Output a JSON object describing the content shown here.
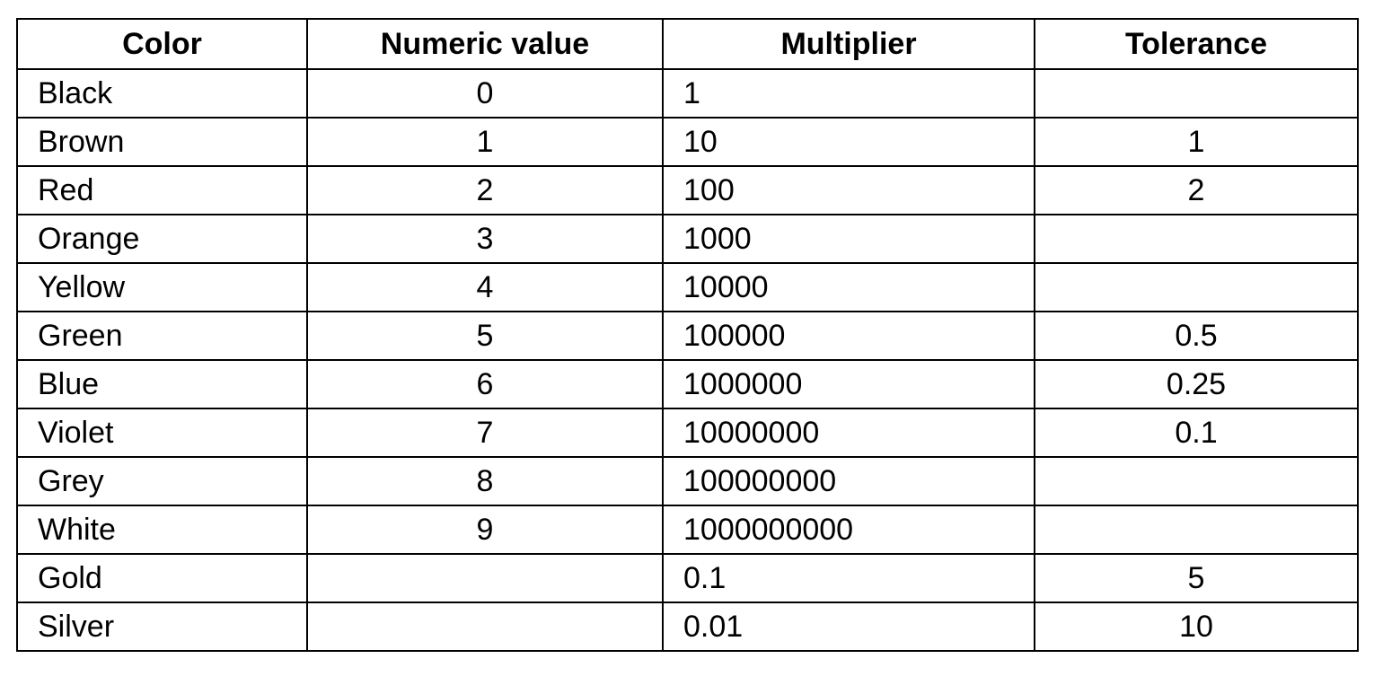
{
  "table": {
    "headers": [
      "Color",
      "Numeric value",
      "Multiplier",
      "Tolerance"
    ],
    "rows": [
      {
        "color": "Black",
        "numeric": "0",
        "multiplier": "1",
        "tolerance": ""
      },
      {
        "color": "Brown",
        "numeric": "1",
        "multiplier": "10",
        "tolerance": "1"
      },
      {
        "color": "Red",
        "numeric": "2",
        "multiplier": "100",
        "tolerance": "2"
      },
      {
        "color": "Orange",
        "numeric": "3",
        "multiplier": "1000",
        "tolerance": ""
      },
      {
        "color": "Yellow",
        "numeric": "4",
        "multiplier": "10000",
        "tolerance": ""
      },
      {
        "color": "Green",
        "numeric": "5",
        "multiplier": "100000",
        "tolerance": "0.5"
      },
      {
        "color": "Blue",
        "numeric": "6",
        "multiplier": "1000000",
        "tolerance": "0.25"
      },
      {
        "color": "Violet",
        "numeric": "7",
        "multiplier": "10000000",
        "tolerance": "0.1"
      },
      {
        "color": "Grey",
        "numeric": "8",
        "multiplier": "100000000",
        "tolerance": ""
      },
      {
        "color": "White",
        "numeric": "9",
        "multiplier": "1000000000",
        "tolerance": ""
      },
      {
        "color": "Gold",
        "numeric": "",
        "multiplier": "0.1",
        "tolerance": "5"
      },
      {
        "color": "Silver",
        "numeric": "",
        "multiplier": "0.01",
        "tolerance": "10"
      }
    ]
  }
}
